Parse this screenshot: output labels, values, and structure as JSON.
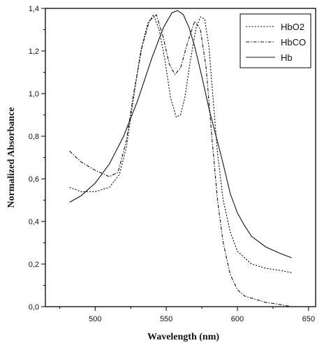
{
  "chart_data": {
    "type": "line",
    "title": "",
    "xlabel": "Wavelength (nm)",
    "ylabel": "Normalized Absorbance",
    "xlim": [
      465,
      655
    ],
    "ylim": [
      0.0,
      1.4
    ],
    "xticks": [
      500,
      550,
      600,
      650
    ],
    "yticks": [
      0.0,
      0.2,
      0.4,
      0.6,
      0.8,
      1.0,
      1.2,
      1.4
    ],
    "xtick_labels": [
      "500",
      "550",
      "600",
      "650"
    ],
    "ytick_labels": [
      "0,0",
      "0,2",
      "0,4",
      "0,6",
      "0,8",
      "1,0",
      "1,2",
      "1,4"
    ],
    "grid": false,
    "legend_position": "top-right",
    "series": [
      {
        "name": "HbO2",
        "style": "dotted",
        "x": [
          482,
          490,
          500,
          510,
          517,
          522,
          527,
          532,
          537,
          541,
          545,
          549,
          553,
          557,
          560,
          563,
          567,
          571,
          574,
          577,
          580,
          583,
          586,
          590,
          595,
          600,
          610,
          620,
          630,
          638
        ],
        "y": [
          0.56,
          0.54,
          0.54,
          0.56,
          0.62,
          0.75,
          0.98,
          1.2,
          1.33,
          1.37,
          1.3,
          1.16,
          0.98,
          0.89,
          0.9,
          0.98,
          1.16,
          1.31,
          1.36,
          1.35,
          1.22,
          0.97,
          0.72,
          0.5,
          0.35,
          0.26,
          0.2,
          0.18,
          0.17,
          0.16
        ]
      },
      {
        "name": "HbCO",
        "style": "dash-dot",
        "x": [
          482,
          490,
          500,
          510,
          516,
          522,
          527,
          533,
          538,
          543,
          548,
          552,
          556,
          560,
          565,
          570,
          574,
          578,
          582,
          586,
          590,
          595,
          600,
          605,
          610,
          620,
          630,
          638
        ],
        "y": [
          0.73,
          0.68,
          0.64,
          0.61,
          0.63,
          0.78,
          1.0,
          1.22,
          1.34,
          1.37,
          1.26,
          1.14,
          1.09,
          1.12,
          1.24,
          1.34,
          1.3,
          1.12,
          0.8,
          0.5,
          0.3,
          0.15,
          0.08,
          0.05,
          0.04,
          0.02,
          0.01,
          0.0
        ]
      },
      {
        "name": "Hb",
        "style": "solid",
        "x": [
          482,
          490,
          500,
          510,
          520,
          530,
          540,
          548,
          554,
          558,
          562,
          566,
          570,
          575,
          580,
          585,
          590,
          595,
          600,
          605,
          610,
          620,
          630,
          638
        ],
        "y": [
          0.49,
          0.52,
          0.58,
          0.67,
          0.8,
          0.97,
          1.17,
          1.31,
          1.38,
          1.39,
          1.37,
          1.31,
          1.22,
          1.08,
          0.93,
          0.8,
          0.67,
          0.53,
          0.44,
          0.38,
          0.33,
          0.28,
          0.25,
          0.23
        ]
      }
    ]
  }
}
